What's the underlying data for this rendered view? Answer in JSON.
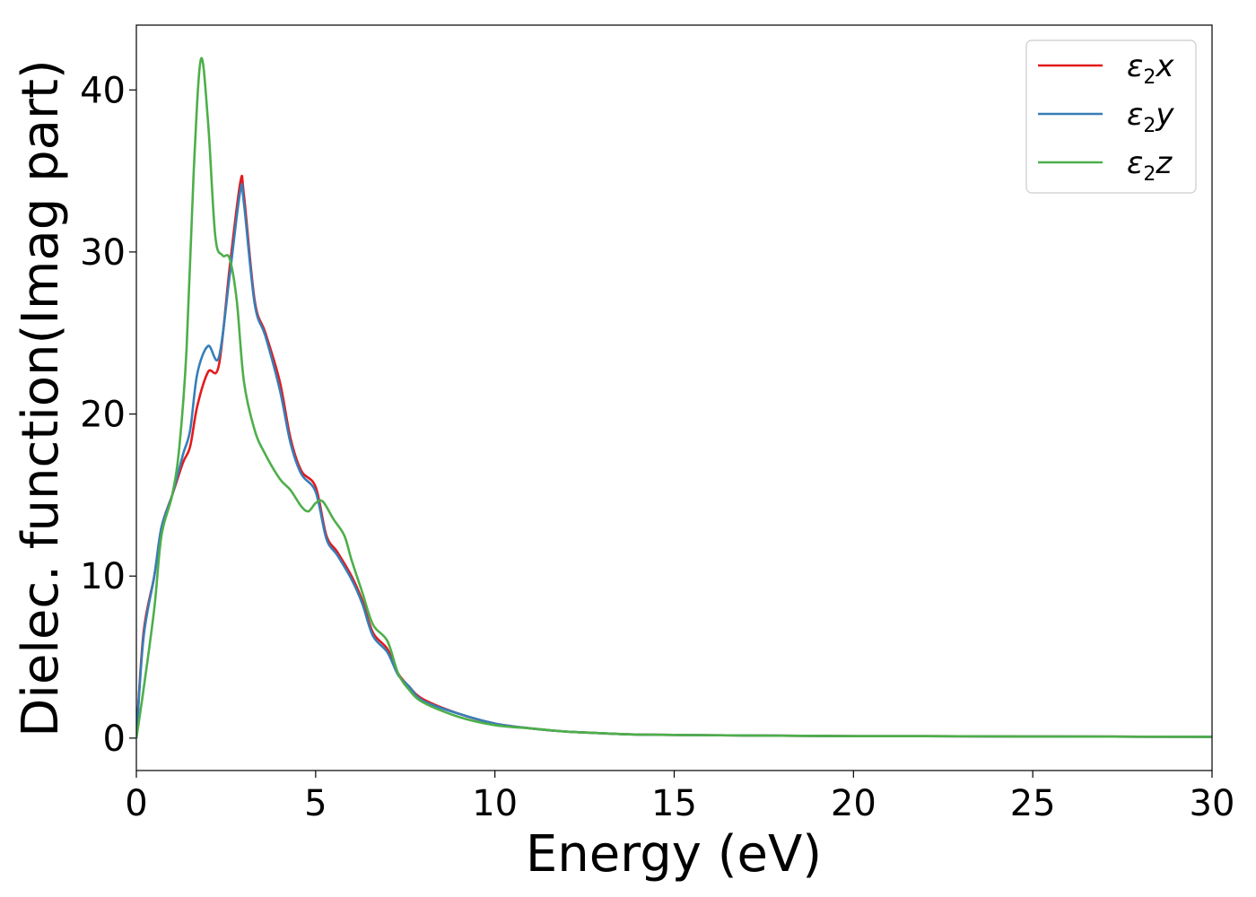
{
  "chart_data": {
    "type": "line",
    "xlabel": "Energy (eV)",
    "ylabel": "Dielec. function(Imag part)",
    "xlim": [
      0,
      30
    ],
    "ylim": [
      -2,
      44
    ],
    "x_ticks": [
      0,
      5,
      10,
      15,
      20,
      25,
      30
    ],
    "y_ticks": [
      0,
      10,
      20,
      30,
      40
    ],
    "legend_position": "top-right",
    "grid": false,
    "series": [
      {
        "name": "ε2x",
        "symbol": "ε",
        "subscript": "2",
        "axis": "x",
        "color": "#e41a1c",
        "x": [
          0,
          0.2,
          0.5,
          0.7,
          1.0,
          1.3,
          1.5,
          1.7,
          2.0,
          2.3,
          2.6,
          2.9,
          3.0,
          3.3,
          3.6,
          4.0,
          4.3,
          4.6,
          5.0,
          5.3,
          5.6,
          6.0,
          6.3,
          6.6,
          7.0,
          7.3,
          7.6,
          8.0,
          9.0,
          10.0,
          11.0,
          12.0,
          13.0,
          14.0,
          16.0,
          18.0,
          20.0,
          22.0,
          25.0,
          30.0
        ],
        "y": [
          0,
          6.5,
          10,
          13,
          15,
          17,
          18,
          20.5,
          22.6,
          23,
          29,
          34.3,
          33.5,
          27,
          25,
          22,
          18.5,
          16.5,
          15.5,
          12.5,
          11.5,
          10,
          8.5,
          6.5,
          5.5,
          4,
          3.2,
          2.4,
          1.5,
          0.9,
          0.6,
          0.4,
          0.3,
          0.22,
          0.18,
          0.15,
          0.12,
          0.12,
          0.1,
          0.08
        ]
      },
      {
        "name": "ε2y",
        "symbol": "ε",
        "subscript": "2",
        "axis": "y",
        "color": "#377eb8",
        "x": [
          0,
          0.2,
          0.5,
          0.7,
          1.0,
          1.3,
          1.5,
          1.7,
          2.0,
          2.3,
          2.6,
          2.9,
          3.0,
          3.3,
          3.6,
          4.0,
          4.3,
          4.6,
          5.0,
          5.3,
          5.6,
          6.0,
          6.3,
          6.6,
          7.0,
          7.3,
          7.6,
          8.0,
          9.0,
          10.0,
          11.0,
          12.0,
          13.0,
          14.0,
          16.0,
          18.0,
          20.0,
          22.0,
          25.0,
          30.0
        ],
        "y": [
          0,
          6.2,
          10,
          13,
          15,
          17.5,
          19,
          22.5,
          24.2,
          23.5,
          28.5,
          33.8,
          33,
          26.8,
          24.8,
          21.5,
          18.2,
          16.3,
          15.2,
          12.3,
          11.3,
          9.8,
          8.3,
          6.3,
          5.3,
          3.9,
          3.2,
          2.3,
          1.5,
          0.9,
          0.6,
          0.4,
          0.3,
          0.22,
          0.18,
          0.15,
          0.12,
          0.12,
          0.1,
          0.08
        ]
      },
      {
        "name": "ε2z",
        "symbol": "ε",
        "subscript": "2",
        "axis": "z",
        "color": "#4daf4a",
        "x": [
          0,
          0.2,
          0.5,
          0.7,
          1.0,
          1.2,
          1.4,
          1.6,
          1.8,
          2.0,
          2.2,
          2.4,
          2.6,
          2.8,
          3.0,
          3.3,
          3.6,
          4.0,
          4.3,
          4.6,
          4.8,
          5.0,
          5.2,
          5.5,
          5.8,
          6.0,
          6.3,
          6.6,
          7.0,
          7.3,
          7.6,
          8.0,
          9.0,
          10.0,
          11.0,
          12.0,
          13.0,
          14.0,
          16.0,
          18.0,
          20.0,
          22.0,
          25.0,
          30.0
        ],
        "y": [
          0,
          3,
          8,
          12.5,
          15,
          18,
          24,
          35,
          41.9,
          38,
          31,
          29.8,
          29.6,
          27,
          22,
          19,
          17.5,
          16,
          15.3,
          14.3,
          14,
          14.5,
          14.6,
          13.5,
          12.5,
          11,
          9,
          7,
          6,
          4,
          3,
          2.2,
          1.3,
          0.8,
          0.6,
          0.4,
          0.3,
          0.22,
          0.18,
          0.15,
          0.12,
          0.12,
          0.1,
          0.08
        ]
      }
    ]
  }
}
